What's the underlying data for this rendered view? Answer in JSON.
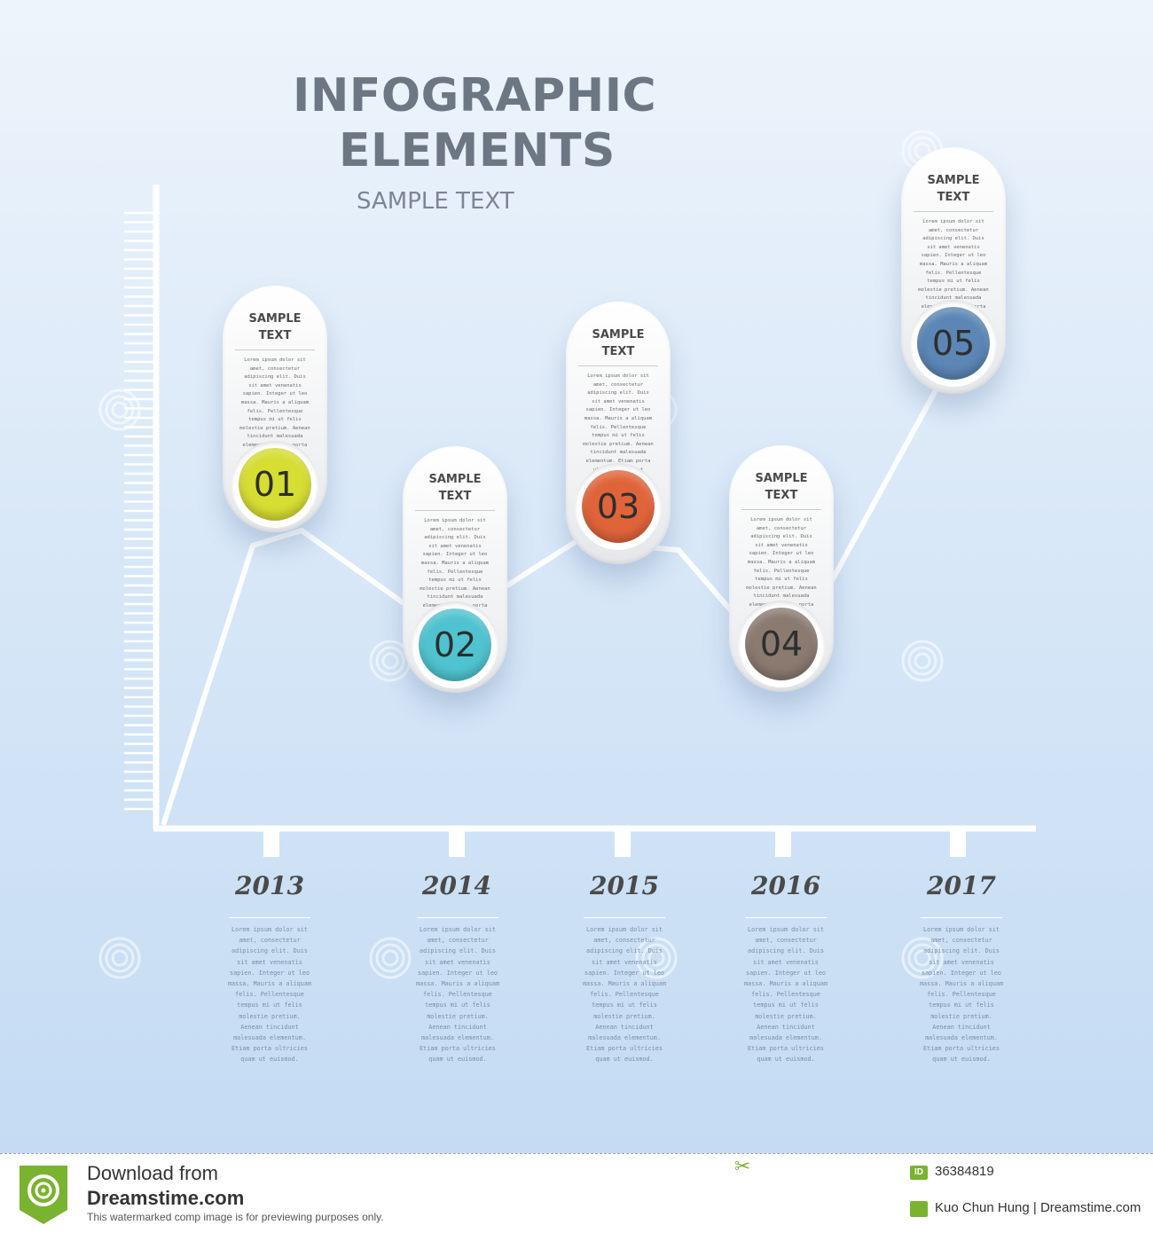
{
  "header": {
    "title_line1": "INFOGRAPHIC",
    "title_line2": "ELEMENTS",
    "subtitle": "SAMPLE TEXT"
  },
  "steps": [
    {
      "number": "01",
      "heading": "SAMPLE TEXT",
      "color": "#d6dd33",
      "body": "Lorem ipsum dolor sit amet, consectetur adipiscing elit. Duis sit amet venenatis sapien. Integer ut leo massa. Mauris a aliquam felis. Pellentesque tempus mi ut felis molestie pretium. Aenean tincidunt malesuada elementum. Etiam porta ultricies quam ut euismod."
    },
    {
      "number": "02",
      "heading": "SAMPLE TEXT",
      "color": "#4fc3cf",
      "body": "Lorem ipsum dolor sit amet, consectetur adipiscing elit. Duis sit amet venenatis sapien. Integer ut leo massa. Mauris a aliquam felis. Pellentesque tempus mi ut felis molestie pretium. Aenean tincidunt malesuada elementum. Etiam porta ultricies quam ut euismod."
    },
    {
      "number": "03",
      "heading": "SAMPLE TEXT",
      "color": "#e0643a",
      "body": "Lorem ipsum dolor sit amet, consectetur adipiscing elit. Duis sit amet venenatis sapien. Integer ut leo massa. Mauris a aliquam felis. Pellentesque tempus mi ut felis molestie pretium. Aenean tincidunt malesuada elementum. Etiam porta ultricies quam ut euismod."
    },
    {
      "number": "04",
      "heading": "SAMPLE TEXT",
      "color": "#8a7a70",
      "body": "Lorem ipsum dolor sit amet, consectetur adipiscing elit. Duis sit amet venenatis sapien. Integer ut leo massa. Mauris a aliquam felis. Pellentesque tempus mi ut felis molestie pretium. Aenean tincidunt malesuada elementum. Etiam porta ultricies quam ut euismod."
    },
    {
      "number": "05",
      "heading": "SAMPLE TEXT",
      "color": "#5b86b5",
      "body": "Lorem ipsum dolor sit amet, consectetur adipiscing elit. Duis sit amet venenatis sapien. Integer ut leo massa. Mauris a aliquam felis. Pellentesque tempus mi ut felis molestie pretium. Aenean tincidunt malesuada elementum. Etiam porta ultricies quam ut euismod."
    }
  ],
  "years": [
    {
      "label": "2013",
      "desc": "Lorem ipsum dolor sit amet, consectetur adipiscing elit. Duis sit amet venenatis sapien. Integer ut leo massa. Mauris a aliquam felis. Pellentesque tempus mi ut felis molestie pretium. Aenean tincidunt malesuada elementum. Etiam porta ultricies quam ut euismod."
    },
    {
      "label": "2014",
      "desc": "Lorem ipsum dolor sit amet, consectetur adipiscing elit. Duis sit amet venenatis sapien. Integer ut leo massa. Mauris a aliquam felis. Pellentesque tempus mi ut felis molestie pretium. Aenean tincidunt malesuada elementum. Etiam porta ultricies quam ut euismod."
    },
    {
      "label": "2015",
      "desc": "Lorem ipsum dolor sit amet, consectetur adipiscing elit. Duis sit amet venenatis sapien. Integer ut leo massa. Mauris a aliquam felis. Pellentesque tempus mi ut felis molestie pretium. Aenean tincidunt malesuada elementum. Etiam porta ultricies quam ut euismod."
    },
    {
      "label": "2016",
      "desc": "Lorem ipsum dolor sit amet, consectetur adipiscing elit. Duis sit amet venenatis sapien. Integer ut leo massa. Mauris a aliquam felis. Pellentesque tempus mi ut felis molestie pretium. Aenean tincidunt malesuada elementum. Etiam porta ultricies quam ut euismod."
    },
    {
      "label": "2017",
      "desc": "Lorem ipsum dolor sit amet, consectetur adipiscing elit. Duis sit amet venenatis sapien. Integer ut leo massa. Mauris a aliquam felis. Pellentesque tempus mi ut felis molestie pretium. Aenean tincidunt malesuada elementum. Etiam porta ultricies quam ut euismod."
    }
  ],
  "footer": {
    "download_text": "Download from",
    "brand": "Dreamstime.com",
    "note": "This watermarked comp image is for previewing purposes only.",
    "id_label": "ID",
    "id_number": "36384819",
    "author": "Kuo Chun Hung | Dreamstime.com",
    "accent": "#7ab32f"
  },
  "watermark_text": "dreamstime"
}
